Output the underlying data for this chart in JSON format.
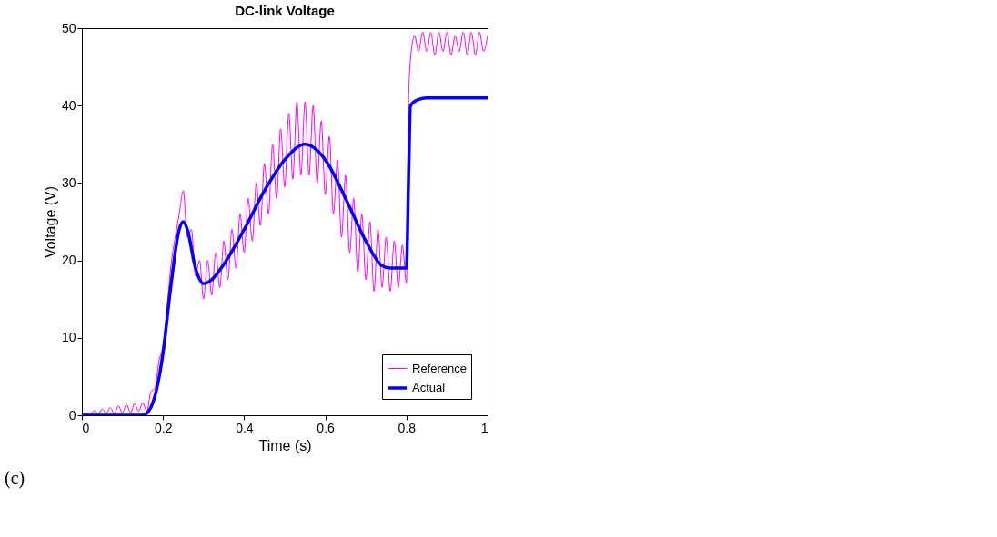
{
  "chart_data": {
    "type": "line",
    "title": "DC-link Voltage",
    "xlabel": "Time (s)",
    "ylabel": "Voltage (V)",
    "xlim": [
      0,
      1
    ],
    "xticks": [
      0,
      0.2,
      0.4,
      0.6,
      0.8,
      1
    ],
    "ylim": [
      0,
      50
    ],
    "yticks": [
      0,
      10,
      20,
      30,
      40,
      50
    ],
    "grid": false,
    "legend": "bottom right",
    "line_style": "solid",
    "annotations": [
      "(c)"
    ],
    "series": [
      {
        "name": "Reference",
        "color": "#ff00ff",
        "x": [
          0,
          0.01,
          0.02,
          0.03,
          0.04,
          0.05,
          0.06,
          0.07,
          0.08,
          0.09,
          0.1,
          0.11,
          0.12,
          0.13,
          0.14,
          0.15,
          0.16,
          0.17,
          0.18,
          0.19,
          0.2,
          0.21,
          0.22,
          0.23,
          0.24,
          0.25,
          0.26,
          0.27,
          0.28,
          0.29,
          0.3,
          0.31,
          0.32,
          0.33,
          0.34,
          0.35,
          0.36,
          0.37,
          0.38,
          0.39,
          0.4,
          0.41,
          0.42,
          0.43,
          0.44,
          0.45,
          0.46,
          0.47,
          0.48,
          0.49,
          0.5,
          0.51,
          0.52,
          0.53,
          0.54,
          0.55,
          0.56,
          0.57,
          0.58,
          0.59,
          0.6,
          0.61,
          0.62,
          0.63,
          0.64,
          0.65,
          0.66,
          0.67,
          0.68,
          0.69,
          0.7,
          0.71,
          0.72,
          0.73,
          0.74,
          0.75,
          0.76,
          0.77,
          0.78,
          0.79,
          0.8,
          0.805,
          0.81,
          0.82,
          0.83,
          0.84,
          0.85,
          0.86,
          0.87,
          0.88,
          0.89,
          0.9,
          0.91,
          0.92,
          0.93,
          0.94,
          0.95,
          0.96,
          0.97,
          0.98,
          0.99,
          1
        ],
        "values": [
          0,
          0.3,
          0,
          0.6,
          0.1,
          0.8,
          0.2,
          1,
          0.2,
          1.2,
          0.3,
          1.4,
          0.3,
          1.5,
          0.5,
          1.6,
          0.5,
          3,
          3.5,
          7,
          9,
          14,
          19.5,
          23,
          26,
          29,
          23,
          24,
          18,
          20,
          15,
          20,
          15.5,
          21,
          16.5,
          22.5,
          17.5,
          24,
          19,
          26,
          21,
          28,
          22.5,
          30,
          24.5,
          32.5,
          26,
          35,
          28,
          37,
          29.5,
          39,
          30.5,
          40.5,
          31,
          40.5,
          31,
          40,
          30,
          38,
          28.5,
          36,
          26,
          33,
          23,
          31,
          21,
          28,
          18.5,
          26,
          17.5,
          25,
          16,
          24,
          16.5,
          23,
          16,
          22.5,
          16.5,
          22,
          17,
          40,
          46,
          49,
          47,
          49.5,
          47,
          49.5,
          46.5,
          49.5,
          47,
          49.5,
          46.5,
          49,
          47,
          49.5,
          46.5,
          49.5,
          46.5,
          49.5,
          47,
          49
        ]
      },
      {
        "name": "Actual",
        "color": "#0000ff",
        "x": [
          0,
          0.15,
          0.17,
          0.2,
          0.22,
          0.24,
          0.25,
          0.26,
          0.28,
          0.3,
          0.32,
          0.35,
          0.4,
          0.45,
          0.5,
          0.55,
          0.6,
          0.65,
          0.7,
          0.74,
          0.76,
          0.8,
          0.805,
          0.81,
          0.83,
          0.85,
          1
        ],
        "values": [
          0,
          0,
          1,
          8,
          17,
          24,
          25,
          24,
          19,
          17,
          17.5,
          19.5,
          24,
          29,
          33,
          35,
          33,
          28,
          22.5,
          19.3,
          19,
          19,
          30,
          40,
          40.8,
          41,
          41
        ]
      }
    ]
  }
}
